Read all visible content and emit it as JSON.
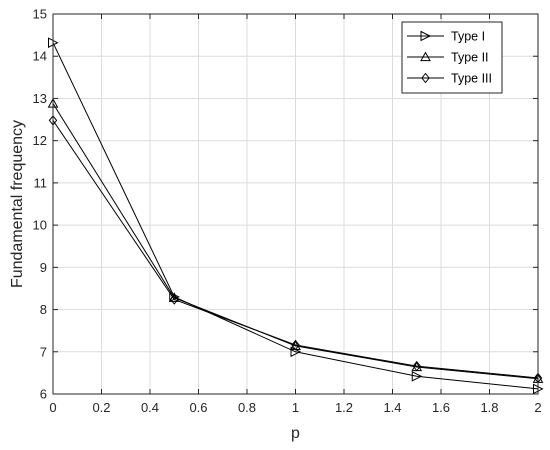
{
  "chart_data": {
    "type": "line",
    "xlabel": "p",
    "ylabel": "Fundamental frequency",
    "xlim": [
      0,
      2
    ],
    "ylim": [
      6,
      15
    ],
    "xticks": [
      0,
      0.2,
      0.4,
      0.6,
      0.8,
      1,
      1.2,
      1.4,
      1.6,
      1.8,
      2
    ],
    "xtick_labels": [
      "0",
      "0.2",
      "0.4",
      "0.6",
      "0.8",
      "1",
      "1.2",
      "1.4",
      "1.6",
      "1.8",
      "2"
    ],
    "yticks": [
      6,
      7,
      8,
      9,
      10,
      11,
      12,
      13,
      14,
      15
    ],
    "ytick_labels": [
      "6",
      "7",
      "8",
      "9",
      "10",
      "11",
      "12",
      "13",
      "14",
      "15"
    ],
    "grid": true,
    "legend_position": "top-right",
    "x": [
      0,
      0.5,
      1,
      1.5,
      2
    ],
    "series": [
      {
        "name": "Type I",
        "marker": "triangle-right",
        "values": [
          14.32,
          8.3,
          7.0,
          6.42,
          6.12
        ]
      },
      {
        "name": "Type II",
        "marker": "triangle-up",
        "values": [
          12.88,
          8.28,
          7.14,
          6.64,
          6.36
        ]
      },
      {
        "name": "Type III",
        "marker": "diamond",
        "values": [
          12.48,
          8.24,
          7.16,
          6.66,
          6.38
        ]
      }
    ],
    "line_color": "#000000",
    "grid_color": "#dcdcdc"
  }
}
